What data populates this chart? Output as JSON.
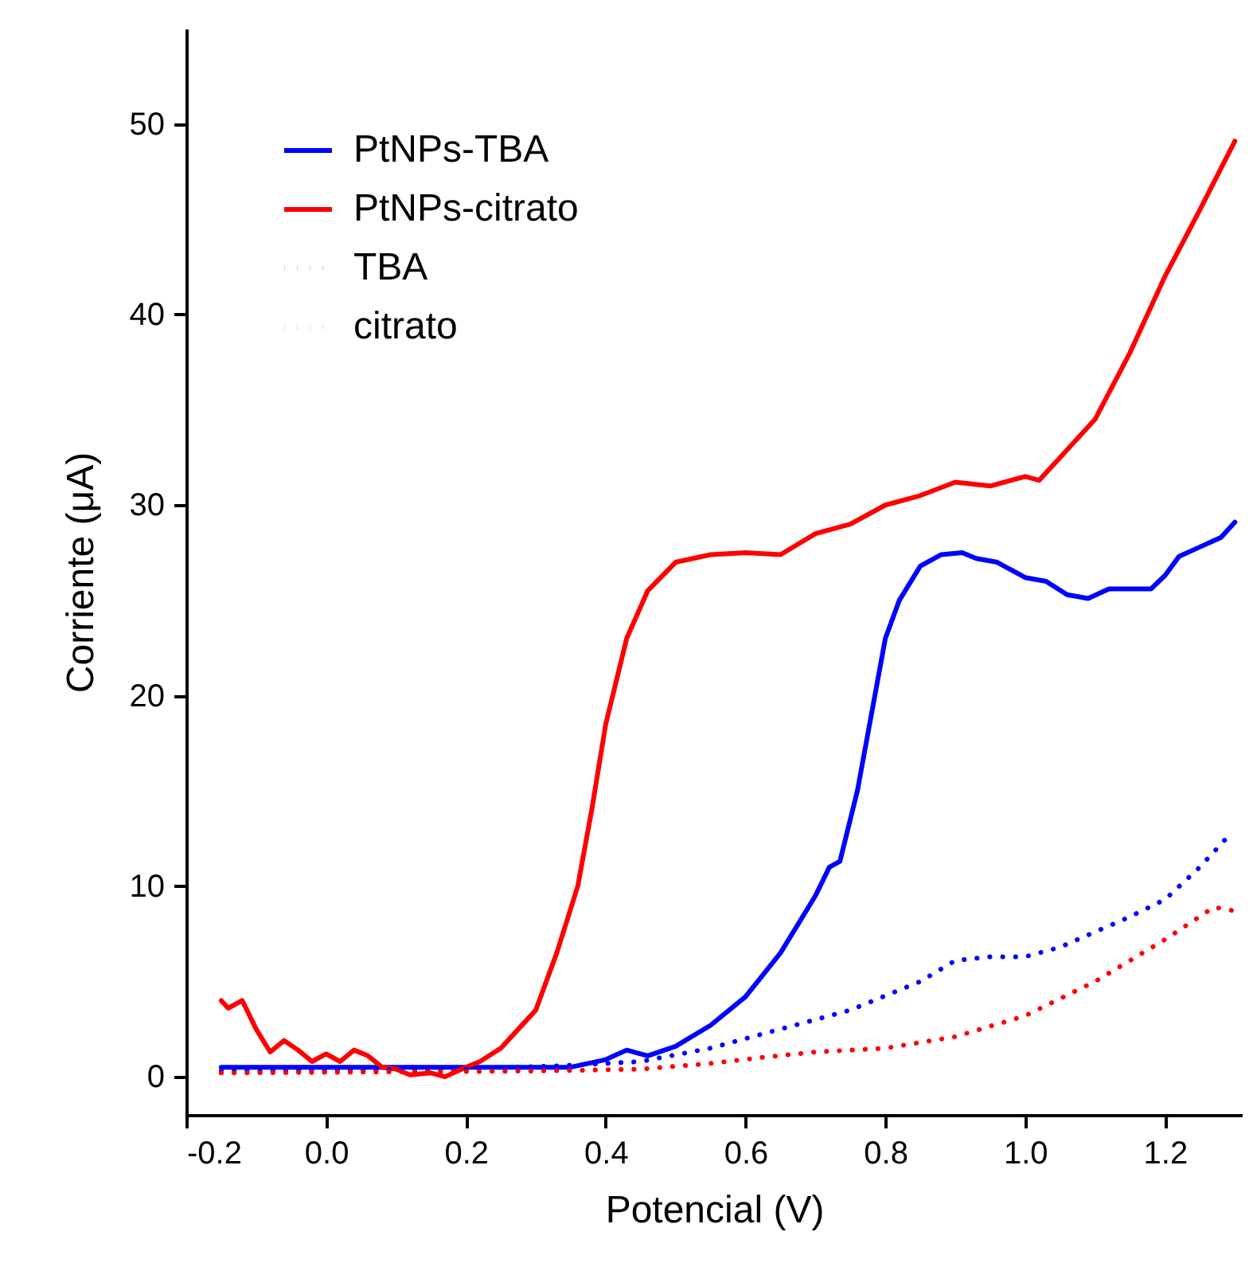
{
  "chart_data": {
    "type": "line",
    "xlabel": "Potencial (V)",
    "ylabel": "Corriente (μA)",
    "xlim": [
      -0.2,
      1.31
    ],
    "xticks": [
      -0.2,
      {
        "value": 0,
        "label": "0.0"
      },
      0.2,
      0.4,
      0.6,
      0.8,
      {
        "value": 1,
        "label": "1.0"
      },
      1.2
    ],
    "ylim": [
      -2,
      55
    ],
    "yticks": [
      0,
      10,
      20,
      30,
      40,
      50
    ],
    "grid": false,
    "legend": "top left",
    "series": [
      {
        "name": "PtNPs-TBA",
        "color": "#0000ff",
        "line_style": "solid",
        "x": [
          -0.15,
          0.0,
          0.2,
          0.35,
          0.4,
          0.43,
          0.46,
          0.5,
          0.55,
          0.6,
          0.65,
          0.7,
          0.72,
          0.735,
          0.76,
          0.78,
          0.8,
          0.82,
          0.85,
          0.88,
          0.91,
          0.93,
          0.96,
          1.0,
          1.03,
          1.06,
          1.09,
          1.12,
          1.18,
          1.2,
          1.22,
          1.25,
          1.28,
          1.3
        ],
        "values": [
          0.5,
          0.5,
          0.5,
          0.5,
          0.9,
          1.4,
          1.1,
          1.6,
          2.7,
          4.2,
          6.5,
          9.5,
          11,
          11.3,
          15,
          19,
          23,
          25,
          26.8,
          27.4,
          27.5,
          27.2,
          27.0,
          26.2,
          26.0,
          25.3,
          25.1,
          25.6,
          25.6,
          26.3,
          27.3,
          27.8,
          28.3,
          29.1
        ]
      },
      {
        "name": "PtNPs-citrato",
        "color": "#ff0000",
        "line_style": "solid",
        "x": [
          -0.15,
          -0.14,
          -0.12,
          -0.1,
          -0.08,
          -0.06,
          -0.04,
          -0.02,
          0.0,
          0.02,
          0.04,
          0.06,
          0.08,
          0.1,
          0.12,
          0.15,
          0.17,
          0.2,
          0.22,
          0.25,
          0.27,
          0.3,
          0.33,
          0.36,
          0.38,
          0.4,
          0.43,
          0.46,
          0.5,
          0.55,
          0.6,
          0.65,
          0.7,
          0.75,
          0.8,
          0.85,
          0.9,
          0.95,
          1.0,
          1.02,
          1.05,
          1.1,
          1.15,
          1.2,
          1.25,
          1.3
        ],
        "values": [
          4.0,
          3.6,
          4.0,
          2.5,
          1.3,
          1.9,
          1.4,
          0.8,
          1.2,
          0.8,
          1.4,
          1.1,
          0.5,
          0.4,
          0.1,
          0.2,
          0.0,
          0.5,
          0.8,
          1.5,
          2.3,
          3.5,
          6.5,
          10,
          14,
          18.5,
          23,
          25.5,
          27,
          27.4,
          27.5,
          27.4,
          28.5,
          29,
          30,
          30.5,
          31.2,
          31.0,
          31.5,
          31.3,
          32.5,
          34.5,
          38,
          42,
          45.5,
          49.1
        ]
      },
      {
        "name": "TBA",
        "color": "#0000ff",
        "line_style": "dotted",
        "x": [
          -0.15,
          0.2,
          0.35,
          0.45,
          0.55,
          0.65,
          0.75,
          0.85,
          0.9,
          0.95,
          1.0,
          1.05,
          1.1,
          1.15,
          1.2,
          1.25,
          1.29
        ],
        "values": [
          0.3,
          0.4,
          0.6,
          0.8,
          1.5,
          2.5,
          3.5,
          5,
          6.1,
          6.3,
          6.3,
          6.8,
          7.6,
          8.4,
          9.3,
          11,
          12.6
        ]
      },
      {
        "name": "citrato",
        "color": "#ff0000",
        "line_style": "dotted",
        "x": [
          -0.15,
          0.3,
          0.45,
          0.55,
          0.62,
          0.7,
          0.8,
          0.9,
          1.0,
          1.1,
          1.2,
          1.27,
          1.3
        ],
        "values": [
          0.2,
          0.3,
          0.4,
          0.7,
          1.0,
          1.3,
          1.5,
          2.1,
          3.2,
          5.0,
          7.2,
          8.9,
          8.7
        ]
      }
    ]
  }
}
